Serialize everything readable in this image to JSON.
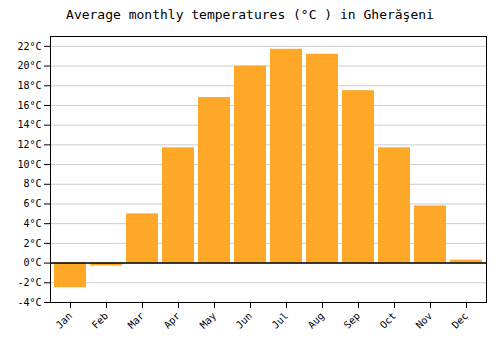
{
  "chart_data": {
    "type": "bar",
    "title": "Average monthly temperatures (°C ) in Gherăşeni",
    "categories": [
      "Jan",
      "Feb",
      "Mar",
      "Apr",
      "May",
      "Jun",
      "Jul",
      "Aug",
      "Sep",
      "Oct",
      "Nov",
      "Dec"
    ],
    "values": [
      -2.5,
      -0.3,
      5.0,
      11.7,
      16.8,
      20.0,
      21.7,
      21.2,
      17.5,
      11.7,
      5.8,
      0.3
    ],
    "color": "#FFA726",
    "ylim": [
      -4,
      23
    ],
    "yticks": [
      {
        "value": -4,
        "label": "-4°C"
      },
      {
        "value": -2,
        "label": "-2°C"
      },
      {
        "value": 0,
        "label": "0°C"
      },
      {
        "value": 2,
        "label": "2°C"
      },
      {
        "value": 4,
        "label": "4°C"
      },
      {
        "value": 6,
        "label": "6°C"
      },
      {
        "value": 8,
        "label": "8°C"
      },
      {
        "value": 10,
        "label": "10°C"
      },
      {
        "value": 12,
        "label": "12°C"
      },
      {
        "value": 14,
        "label": "14°C"
      },
      {
        "value": 16,
        "label": "16°C"
      },
      {
        "value": 18,
        "label": "18°C"
      },
      {
        "value": 20,
        "label": "20°C"
      },
      {
        "value": 22,
        "label": "22°C"
      }
    ],
    "grid": true
  }
}
